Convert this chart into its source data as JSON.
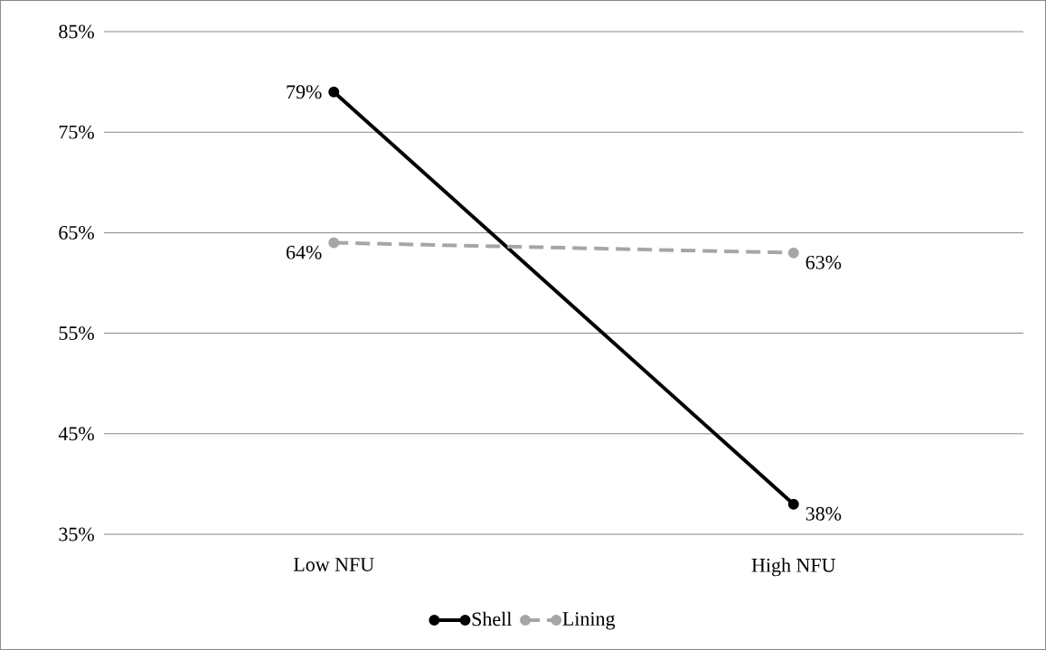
{
  "chart_data": {
    "type": "line",
    "categories": [
      "Low NFU",
      "High NFU"
    ],
    "series": [
      {
        "name": "Shell",
        "color": "#000000",
        "values": [
          79,
          38
        ],
        "line_style": "solid",
        "value_labels": [
          "79%",
          "38%"
        ]
      },
      {
        "name": "Lining",
        "color": "#a6a6a6",
        "values": [
          64,
          63
        ],
        "line_style": "dashed",
        "value_labels": [
          "64%",
          "63%"
        ]
      }
    ],
    "ylim": [
      35,
      85
    ],
    "yticks": [
      {
        "value": 35,
        "label": "35%"
      },
      {
        "value": 45,
        "label": "45%"
      },
      {
        "value": 55,
        "label": "55%"
      },
      {
        "value": 65,
        "label": "65%"
      },
      {
        "value": 75,
        "label": "75%"
      },
      {
        "value": 85,
        "label": "85%"
      }
    ],
    "grid": "y",
    "legend": "bottom",
    "marker": "circle"
  }
}
